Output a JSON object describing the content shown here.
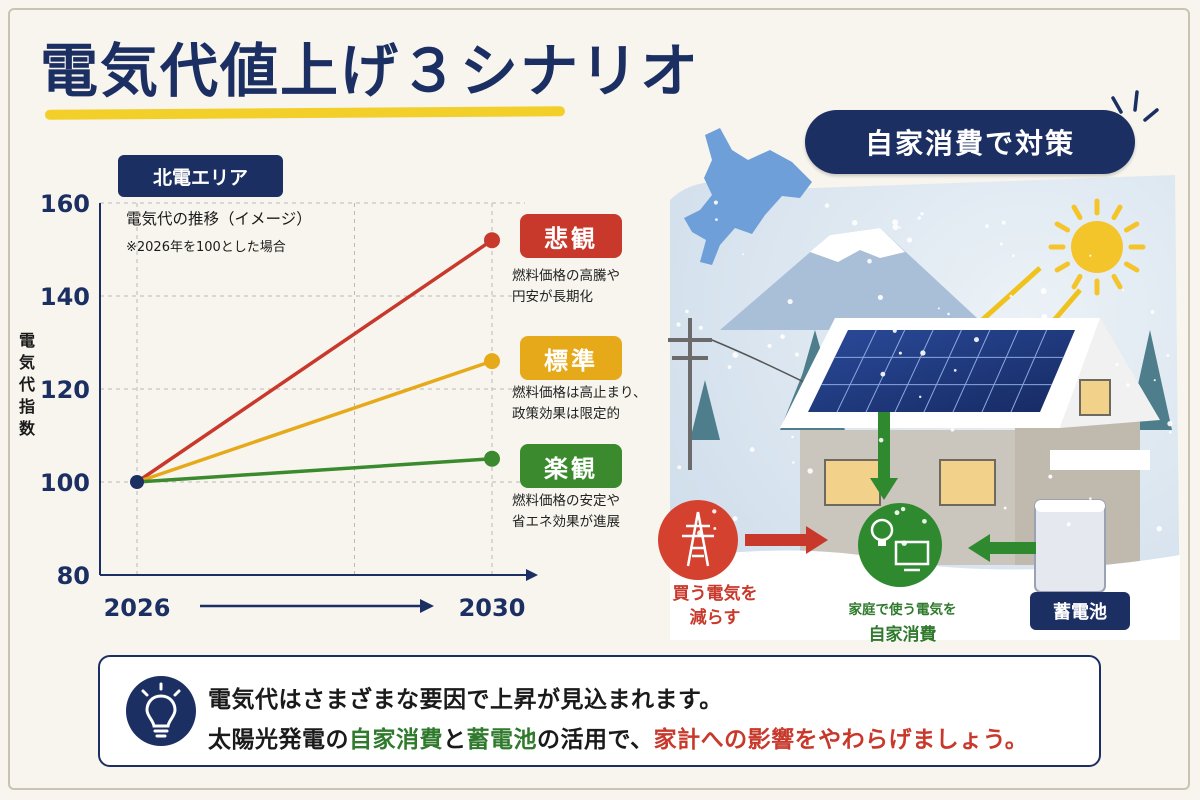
{
  "title": "電気代値上げ３シナリオ",
  "area_badge": "北電エリア",
  "chart": {
    "inner_title": "電気代の推移（イメージ）",
    "inner_note": "※2026年を100とした場合",
    "ylabel": "電\n気\n代\n指\n数",
    "ylabel_chars": [
      "電",
      "気",
      "代",
      "指",
      "数"
    ]
  },
  "chart_data": {
    "type": "line",
    "x": [
      "2026",
      "2030"
    ],
    "ylim": [
      80,
      160
    ],
    "yticks": [
      "80",
      "100",
      "120",
      "140",
      "160"
    ],
    "ylabel": "電気代指数",
    "grid": true,
    "series": [
      {
        "name": "悲観",
        "color": "#c8392c",
        "values": [
          100,
          152
        ]
      },
      {
        "name": "標準",
        "color": "#e6a91a",
        "values": [
          100,
          126
        ]
      },
      {
        "name": "楽観",
        "color": "#3b8a2e",
        "values": [
          100,
          105
        ]
      }
    ]
  },
  "scenarios": [
    {
      "label": "悲観",
      "color": "#c8392c",
      "desc": [
        "燃料価格の高騰や",
        "円安が長期化"
      ]
    },
    {
      "label": "標準",
      "color": "#e6a91a",
      "desc": [
        "燃料価格は高止まり、",
        "政策効果は限定的"
      ]
    },
    {
      "label": "楽観",
      "color": "#3b8a2e",
      "desc": [
        "燃料価格の安定や",
        "省エネ効果が進展"
      ]
    }
  ],
  "illustration": {
    "pill": "自家消費で対策",
    "buy_label": [
      "買う電気を",
      "減らす"
    ],
    "home_label_small": "家庭で使う電気を",
    "home_label_big": "自家消費",
    "battery": "蓄電池"
  },
  "note": {
    "line1": "電気代はさまざまな要因で上昇が見込まれます。",
    "line2_parts": [
      "太陽光発電の",
      "自家消費",
      "と",
      "蓄電池",
      "の活用で、",
      "家計への影響をやわらげましょう。"
    ]
  },
  "colors": {
    "navy": "#1c2f63",
    "red": "#c8392c",
    "yellow": "#e6a91a",
    "green": "#3b8a2e",
    "accent_underline": "#f3cf2a"
  }
}
